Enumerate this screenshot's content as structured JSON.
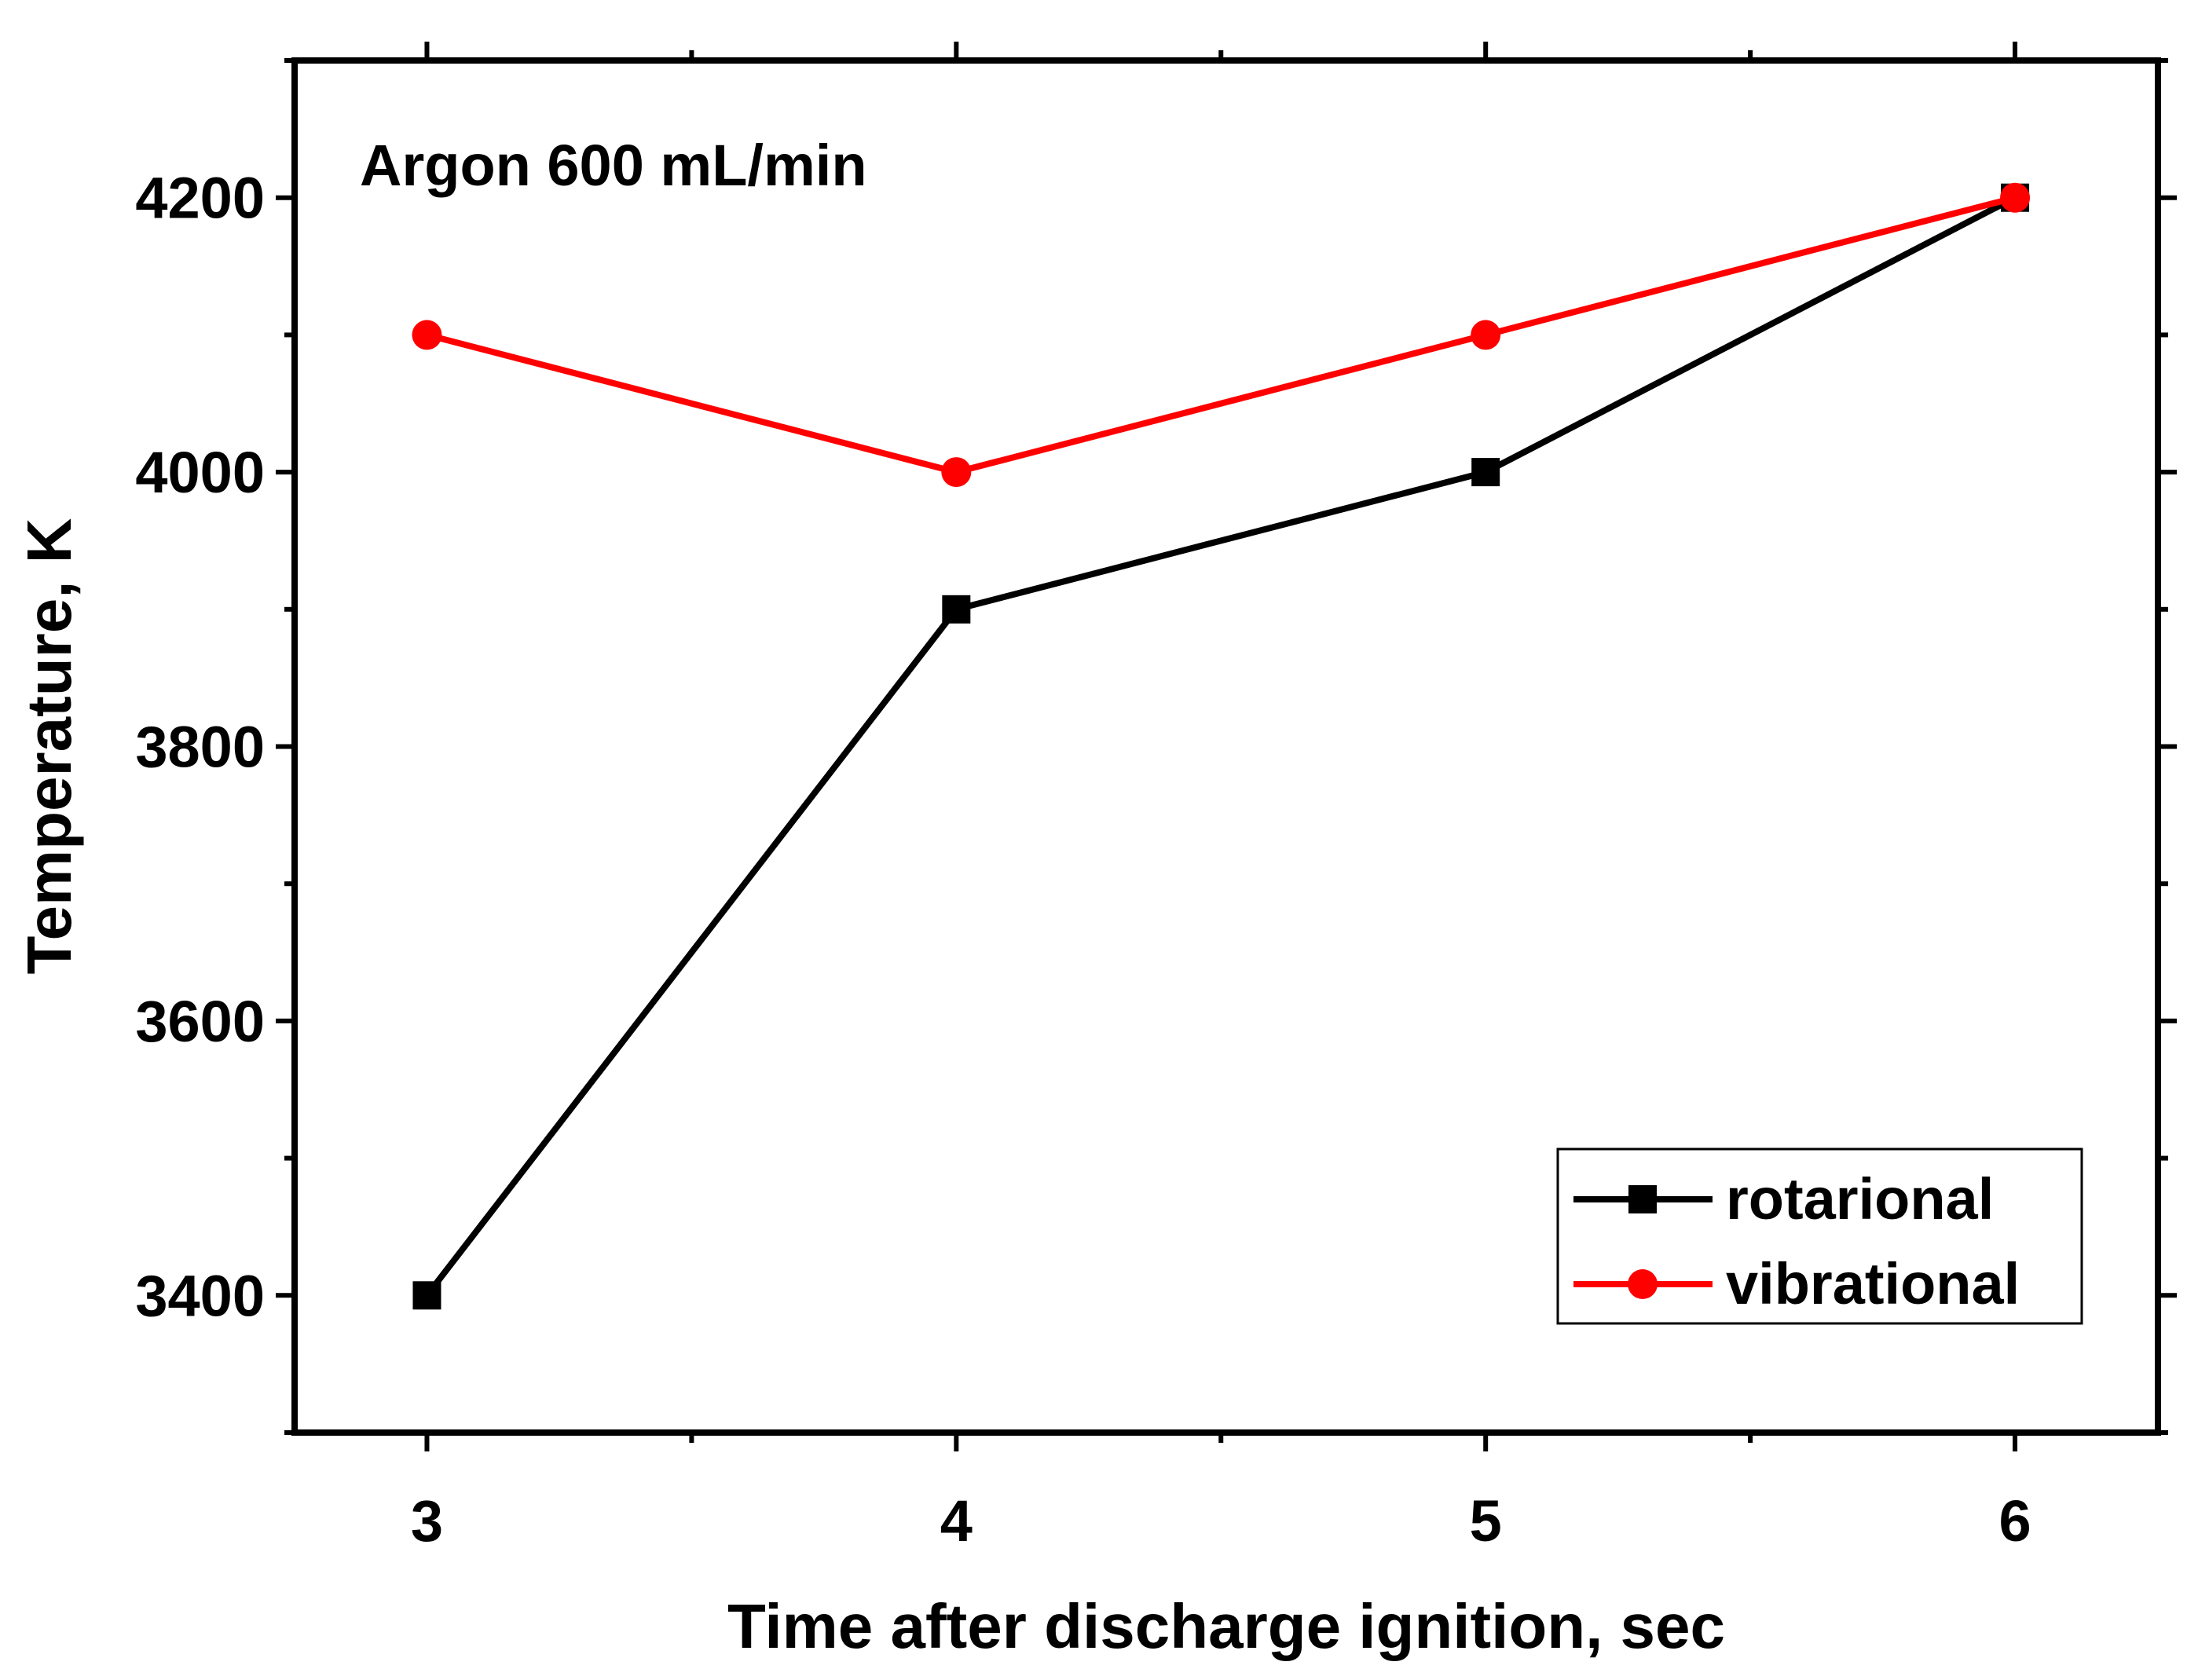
{
  "chart_data": {
    "type": "line",
    "title": "",
    "annotation": "Argon 600 mL/min",
    "xlabel": "Time after discharge ignition, sec",
    "ylabel": "Temperature, K",
    "x": [
      3,
      4,
      5,
      6
    ],
    "xlim": [
      2.75,
      6.27
    ],
    "ylim": [
      3300,
      4300
    ],
    "xticks": [
      3,
      4,
      5,
      6
    ],
    "xtick_labels": [
      "3",
      "4",
      "5",
      "6"
    ],
    "xminor": [
      3.5,
      4.5,
      5.5
    ],
    "yticks": [
      3400,
      3600,
      3800,
      4000,
      4200
    ],
    "ytick_labels": [
      "3400",
      "3600",
      "3800",
      "4000",
      "4200"
    ],
    "yminor": [
      3300,
      3500,
      3700,
      3900,
      4100,
      4300
    ],
    "grid": false,
    "legend_position": "bottom-right",
    "series": [
      {
        "name": "rotarional",
        "values": [
          3400,
          3900,
          4000,
          4200
        ],
        "color": "#000000",
        "marker": "square"
      },
      {
        "name": "vibrational",
        "values": [
          4100,
          4000,
          4100,
          4200
        ],
        "color": "#ff0000",
        "marker": "circle"
      }
    ]
  }
}
